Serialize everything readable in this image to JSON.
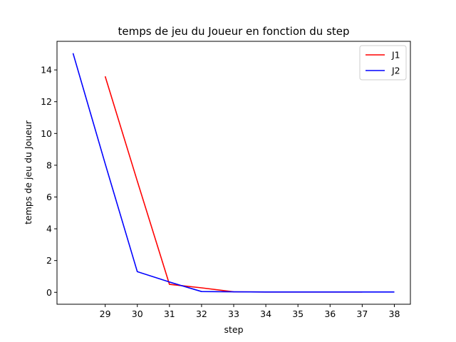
{
  "chart_data": {
    "type": "line",
    "title": "temps de jeu du Joueur en fonction du step",
    "xlabel": "step",
    "ylabel": "temps de jeu du Joueur",
    "xlim": [
      27.5,
      38.5
    ],
    "ylim": [
      -0.75,
      15.8
    ],
    "xticks": [
      29,
      30,
      31,
      32,
      33,
      34,
      35,
      36,
      37,
      38
    ],
    "yticks": [
      0,
      2,
      4,
      6,
      8,
      10,
      12,
      14
    ],
    "grid": false,
    "legend_position": "top-right",
    "series": [
      {
        "name": "J1",
        "color": "#ff0000",
        "x": [
          29,
          30,
          31,
          32,
          33,
          34,
          35,
          36,
          37
        ],
        "y": [
          13.6,
          7.0,
          0.5,
          0.28,
          0.03,
          0.02,
          0.02,
          0.02,
          0.02
        ]
      },
      {
        "name": "J2",
        "color": "#0000ff",
        "x": [
          28,
          29,
          30,
          31,
          32,
          33,
          34,
          35,
          36,
          37,
          38
        ],
        "y": [
          15.05,
          8.1,
          1.3,
          0.65,
          0.05,
          0.03,
          0.02,
          0.02,
          0.02,
          0.02,
          0.02
        ]
      }
    ]
  }
}
